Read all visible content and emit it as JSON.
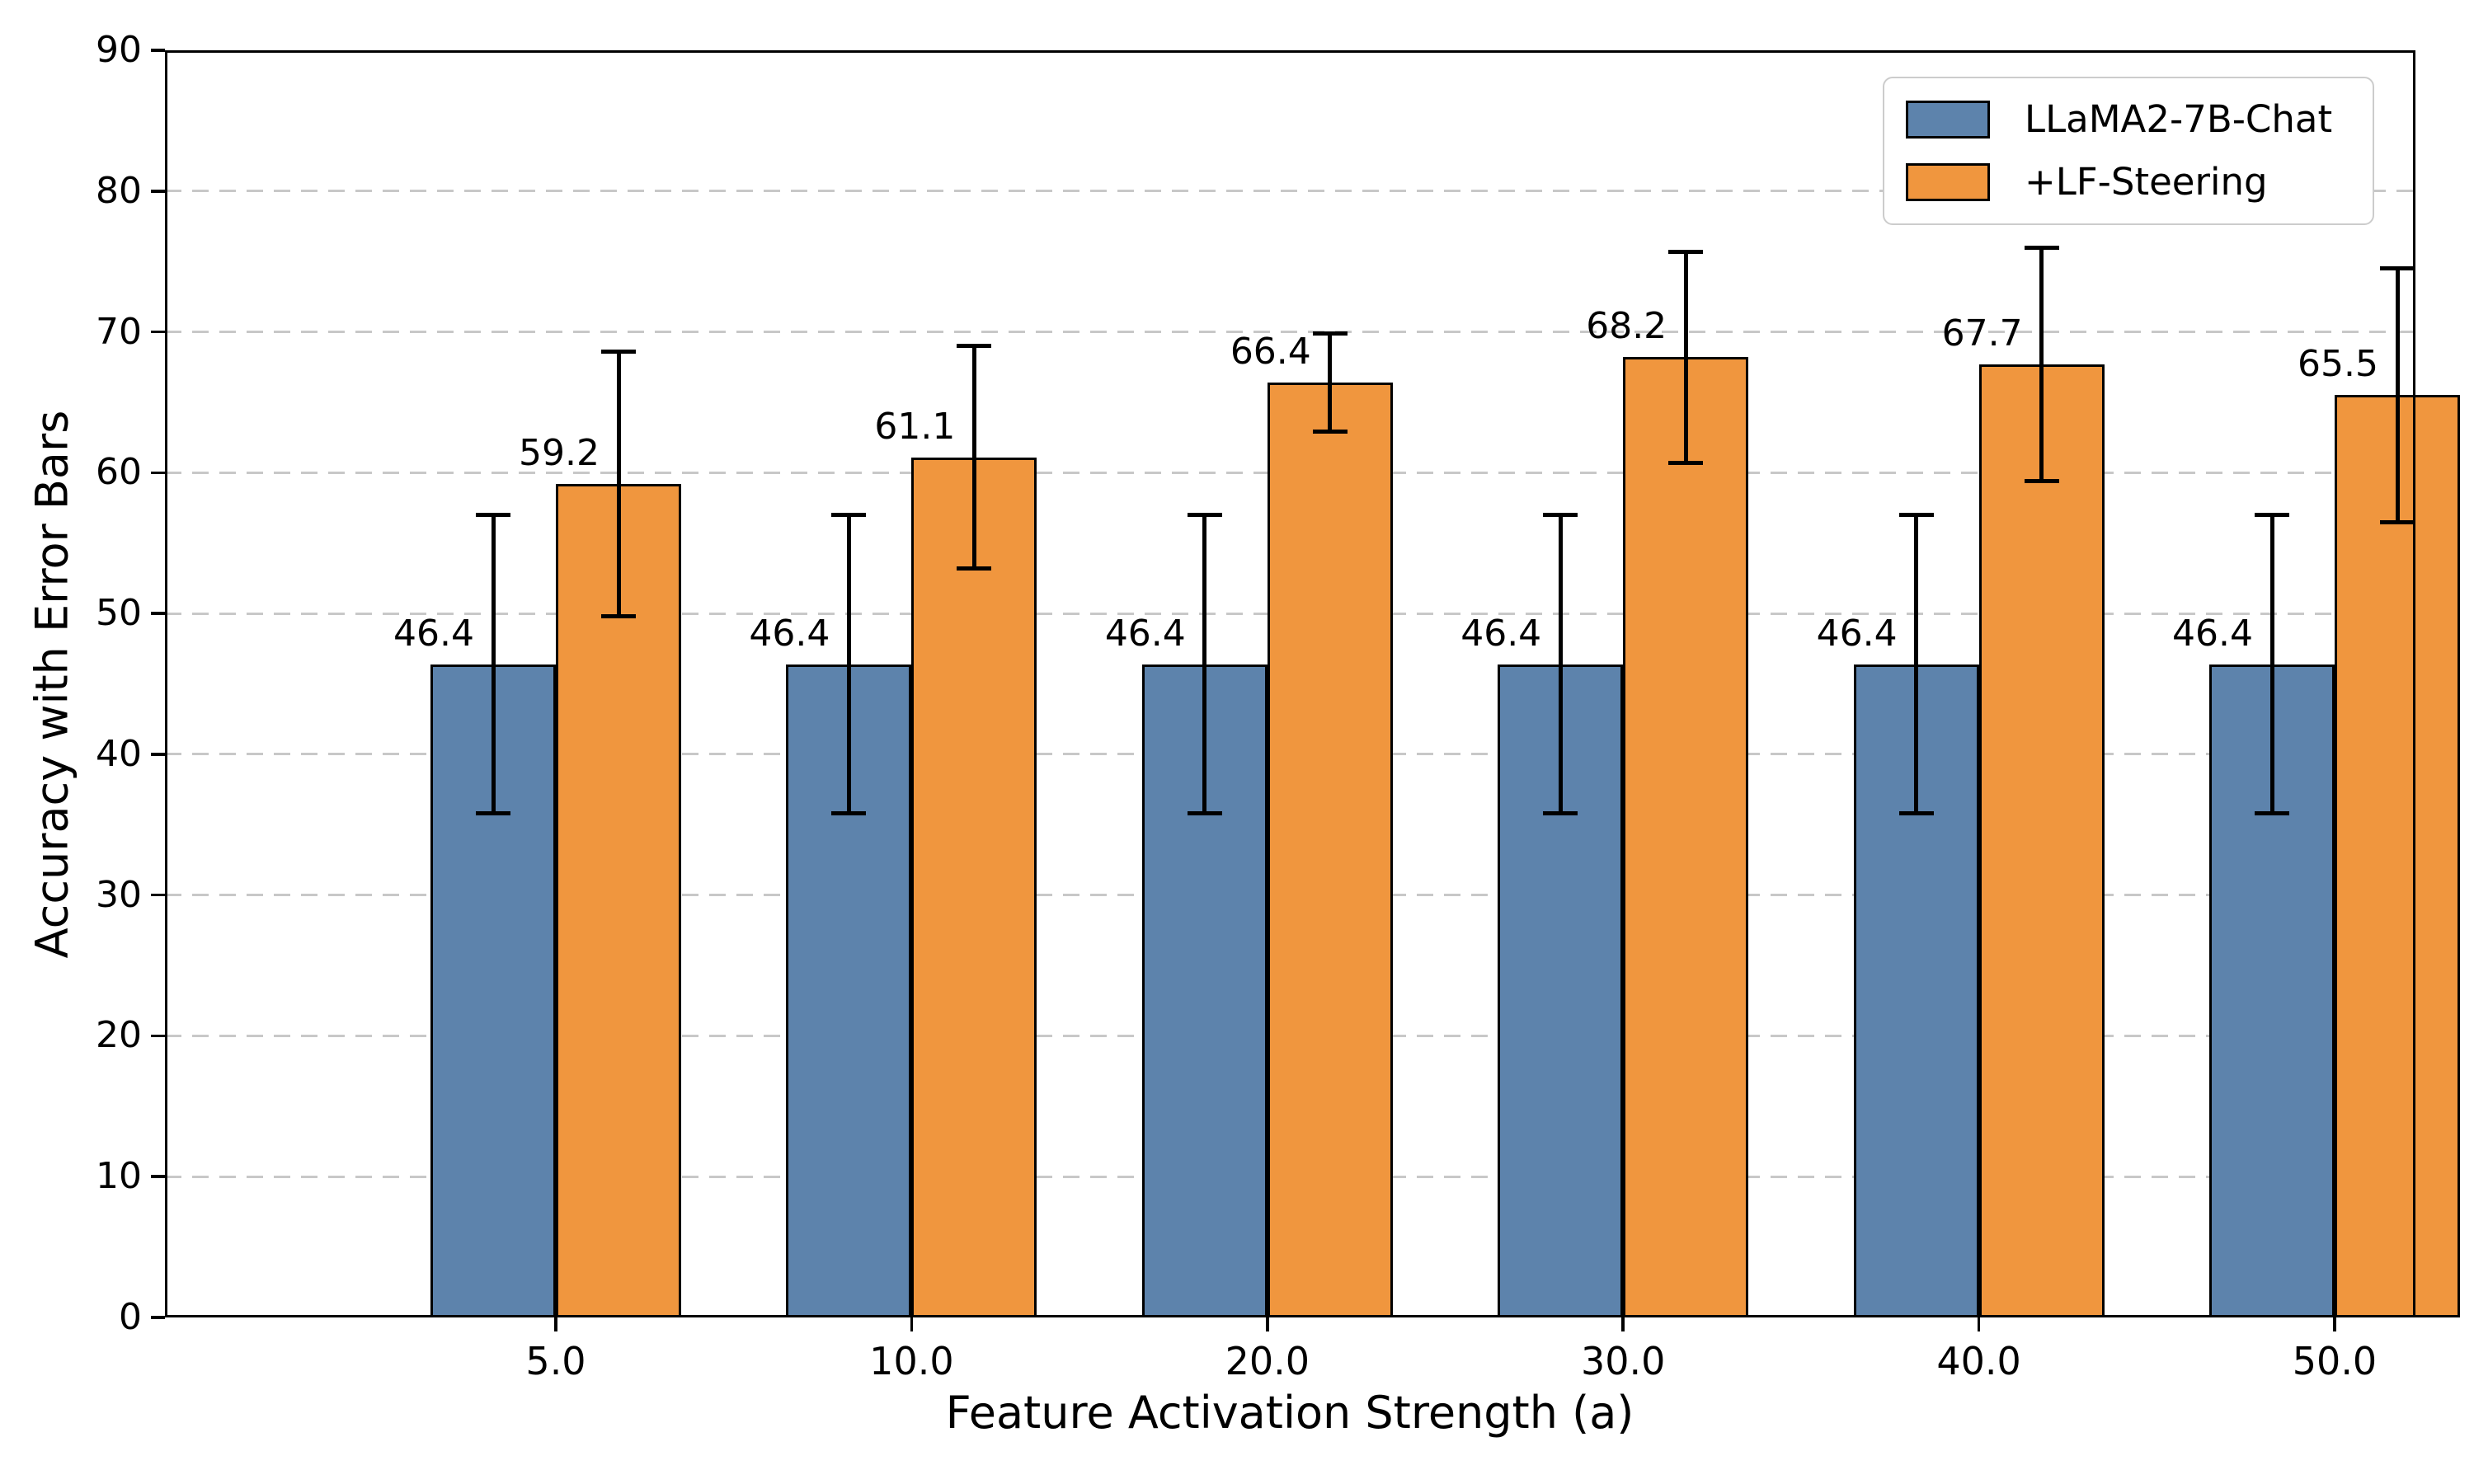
{
  "chart_data": {
    "type": "bar",
    "title": "",
    "xlabel": "Feature Activation Strength (a)",
    "ylabel": "Accuracy with Error Bars",
    "categories": [
      "5.0",
      "10.0",
      "20.0",
      "30.0",
      "40.0",
      "50.0"
    ],
    "series": [
      {
        "name": "LLaMA2-7B-Chat",
        "color": "#5d83ac",
        "edge_color": "#000000",
        "values": [
          46.4,
          46.4,
          46.4,
          46.4,
          46.4,
          46.4
        ],
        "errors": [
          10.6,
          10.6,
          10.6,
          10.6,
          10.6,
          10.6
        ]
      },
      {
        "name": "+LF-Steering",
        "color": "#f0963e",
        "edge_color": "#000000",
        "values": [
          59.2,
          61.1,
          66.4,
          68.2,
          67.7,
          65.5
        ],
        "errors": [
          9.4,
          7.9,
          3.5,
          7.5,
          8.3,
          9.0
        ]
      }
    ],
    "value_label_format": "one_decimal",
    "ylim": [
      0,
      90
    ],
    "yticks": [
      0,
      10,
      20,
      30,
      40,
      50,
      60,
      70,
      80,
      90
    ],
    "grid": {
      "axis": "y",
      "style": "dashed",
      "color": "#c8c8c8"
    },
    "legend": {
      "position": "upper right"
    },
    "error_bar_color": "#000000"
  }
}
